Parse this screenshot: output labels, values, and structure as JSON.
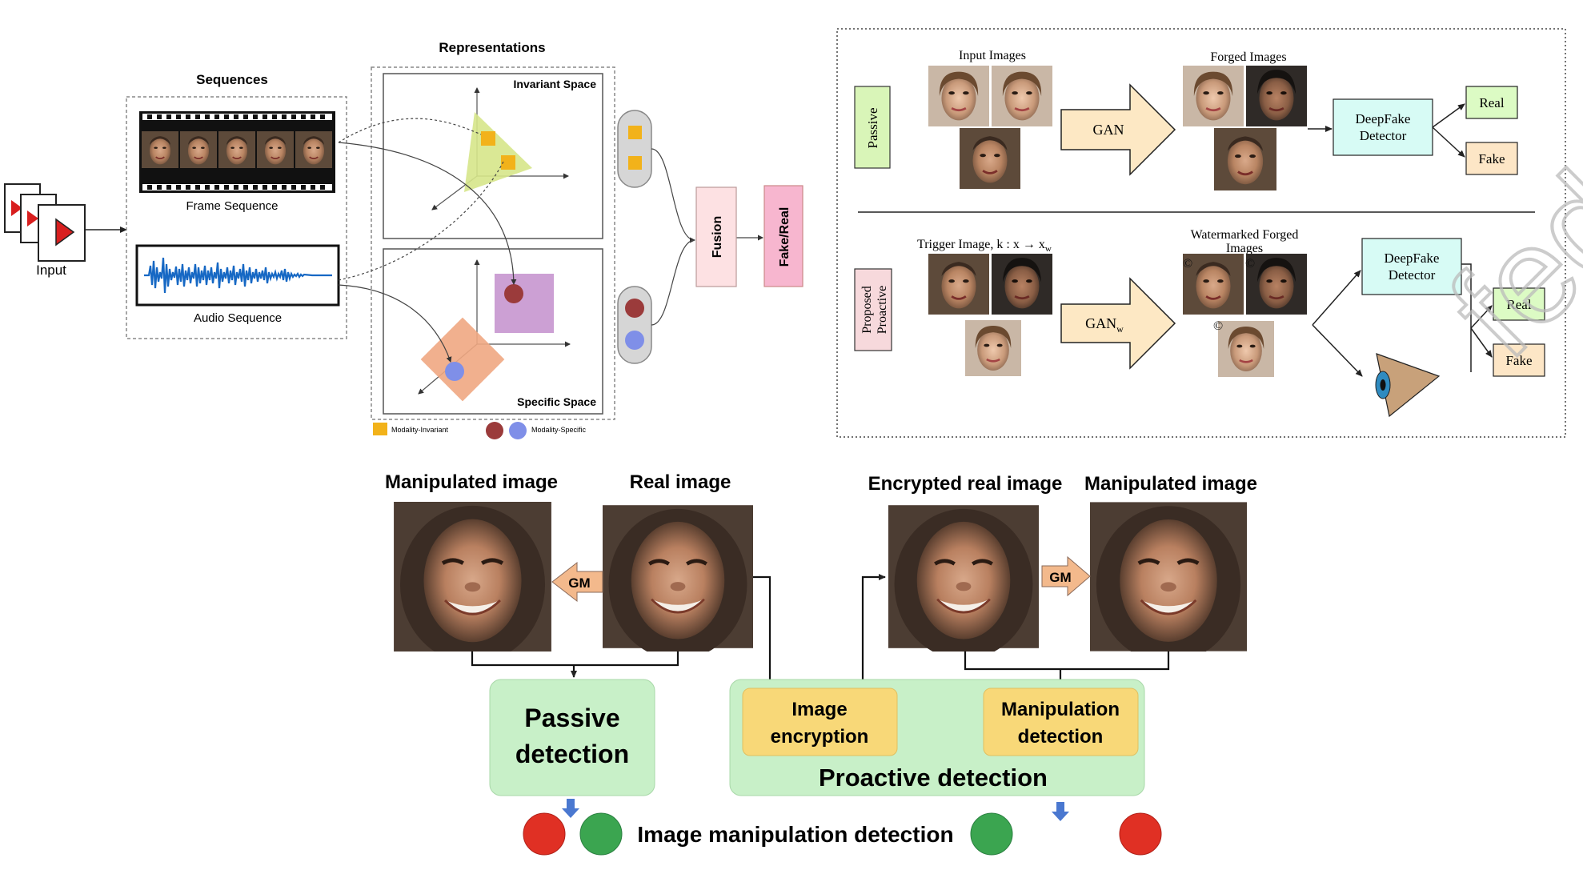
{
  "panel_a": {
    "input_label": "Input",
    "sequences_title": "Sequences",
    "frame_sequence_label": "Frame Sequence",
    "audio_sequence_label": "Audio Sequence",
    "representations_title": "Representations",
    "invariant_space_label": "Invariant Space",
    "specific_space_label": "Specific Space",
    "fusion_label": "Fusion",
    "fake_real_label": "Fake/Real",
    "legend_invariant": "Modality-Invariant",
    "legend_specific": "Modality-Specific",
    "colors": {
      "invariant": "#f2b21a",
      "specific_red": "#9b3b3b",
      "specific_blue": "#7f8fe8",
      "fusion_bg": "#fde1e3",
      "fake_real_bg": "#f7b6cf"
    }
  },
  "panel_b": {
    "passive_label": "Passive",
    "proactive_label_line1": "Proposed",
    "proactive_label_line2": "Proactive",
    "input_images_label": "Input Images",
    "forged_images_label": "Forged Images",
    "gan_label": "GAN",
    "gan_w_label": "GAN",
    "gan_w_subscript": "w",
    "detector_line1": "DeepFake",
    "detector_line2": "Detector",
    "real_label": "Real",
    "fake_label": "Fake",
    "trigger_label": "Trigger Image, k : x → x",
    "trigger_subscript": "w",
    "watermarked_line1": "Watermarked Forged",
    "watermarked_line2": "Images",
    "watermark_symbol": "©",
    "colors": {
      "passive_bg": "#d9f5b8",
      "proactive_bg": "#f7d9dc",
      "detector_bg": "#d7fbf5",
      "real_bg": "#dcfbc4",
      "fake_bg": "#fde6c6",
      "gan_arrow": "#fde8c4"
    }
  },
  "panel_c": {
    "manipulated_label": "Manipulated image",
    "real_label": "Real image",
    "encrypted_label": "Encrypted real image",
    "manipulated_label_2": "Manipulated image",
    "gm_label": "GM",
    "passive_line1": "Passive",
    "passive_line2": "detection",
    "encryption_line1": "Image",
    "encryption_line2": "encryption",
    "manip_det_line1": "Manipulation",
    "manip_det_line2": "detection",
    "proactive_label": "Proactive detection",
    "bottom_label": "Image manipulation detection",
    "colors": {
      "green_box": "#c8f0c8",
      "yellow_box": "#f8d878",
      "gm_arrow": "#f3b98c",
      "red_dot": "#e03024",
      "green_dot": "#3ba550",
      "blue_arrow": "#4a78d0"
    }
  },
  "watermark_text": "fed"
}
